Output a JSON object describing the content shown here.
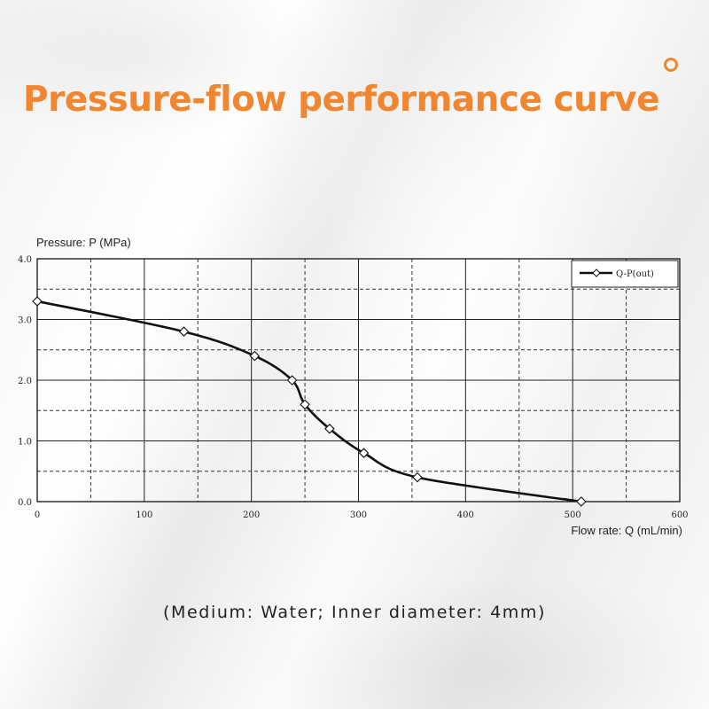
{
  "title": "Pressure-flow performance curve",
  "caption": "(Medium: Water; Inner diameter: 4mm)",
  "colors": {
    "accent": "#f0862f",
    "line": "#111111"
  },
  "decor_icon": "orange-ring-icon",
  "chart_data": {
    "type": "line",
    "title": "",
    "ylabel": "Pressure: P (MPa)",
    "xlabel": "Flow rate: Q (mL/min)",
    "xlim": [
      0,
      600
    ],
    "ylim": [
      0,
      4
    ],
    "x_ticks": [
      "0",
      "100",
      "200",
      "300",
      "400",
      "500",
      "600"
    ],
    "y_ticks": [
      "0.0",
      "1.0",
      "2.0",
      "3.0",
      "4.0"
    ],
    "grid": true,
    "legend": "top-right",
    "series": [
      {
        "name": "Q-P(out)",
        "marker": "diamond",
        "x": [
          0,
          137,
          203,
          238,
          250,
          273,
          305,
          355,
          508
        ],
        "y": [
          3.3,
          2.8,
          2.4,
          2.0,
          1.6,
          1.2,
          0.8,
          0.4,
          0.0
        ]
      }
    ]
  }
}
